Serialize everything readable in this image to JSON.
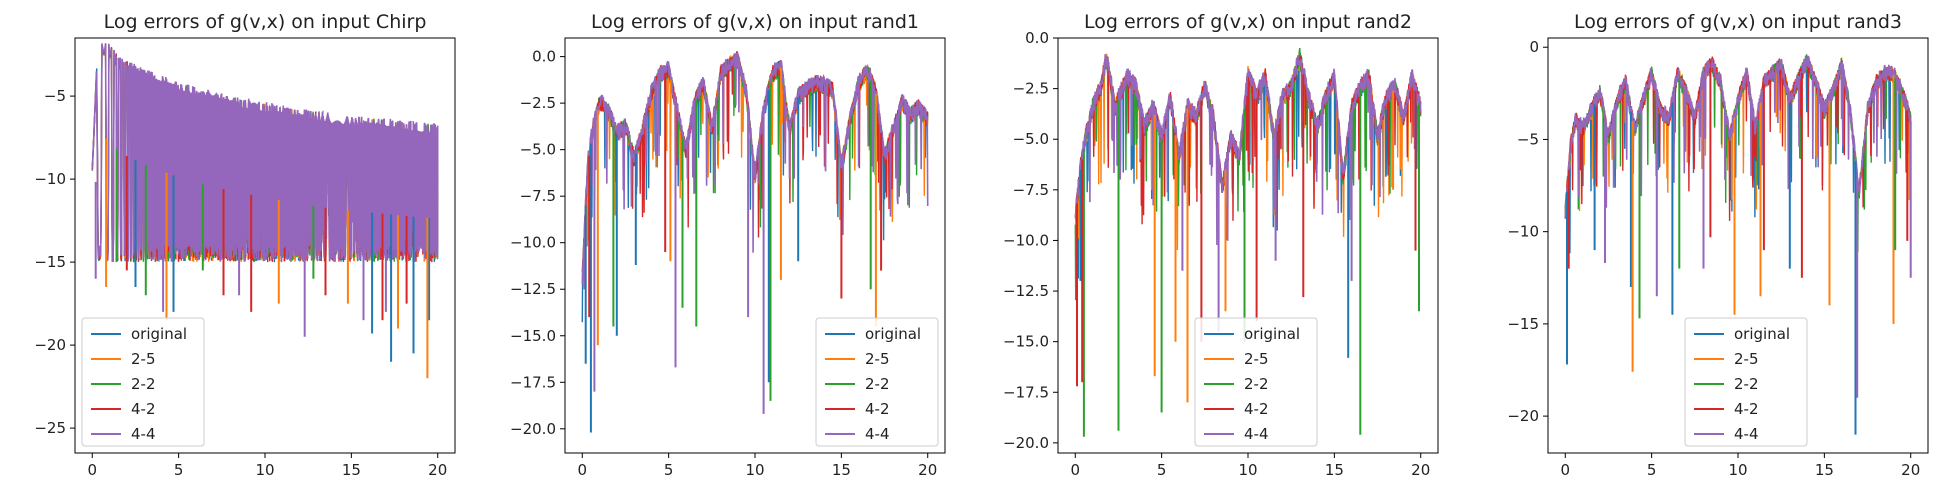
{
  "chart_data": [
    {
      "type": "line",
      "title": "Log errors of g(v,x) on input Chirp",
      "xlabel": "",
      "ylabel": "",
      "xlim": [
        -1,
        21
      ],
      "ylim": [
        -26.5,
        -1.5
      ],
      "xticks": [
        0,
        5,
        10,
        15,
        20
      ],
      "yticks": [
        -25,
        -20,
        -15,
        -10,
        -5
      ],
      "ytick_labels": [
        "−25",
        "−20",
        "−15",
        "−10",
        "−5"
      ],
      "legend": "lower-left",
      "series_labels": [
        "original",
        "2-5",
        "2-2",
        "4-2",
        "4-4"
      ],
      "envelope": {
        "x": [
          0,
          0.3,
          0.6,
          1.0,
          1.5,
          2,
          3,
          4,
          5,
          6,
          8,
          10,
          12,
          14,
          16,
          18,
          20
        ],
        "y": [
          -9.5,
          -3.0,
          -2.5,
          -2.6,
          -3.3,
          -3.6,
          -4.1,
          -4.5,
          -4.9,
          -5.2,
          -5.7,
          -6.1,
          -6.5,
          -6.8,
          -7.0,
          -7.2,
          -7.4
        ]
      },
      "baseline_low": -14.0,
      "spikes": [
        {
          "series": "original",
          "x": 2.5,
          "y": -16.5
        },
        {
          "series": "original",
          "x": 4.7,
          "y": -18.0
        },
        {
          "series": "original",
          "x": 16.2,
          "y": -19.3
        },
        {
          "series": "original",
          "x": 17.3,
          "y": -21.0
        },
        {
          "series": "original",
          "x": 18.6,
          "y": -20.5
        },
        {
          "series": "original",
          "x": 19.5,
          "y": -18.5
        },
        {
          "series": "2-5",
          "x": 0.8,
          "y": -16.5
        },
        {
          "series": "2-5",
          "x": 4.3,
          "y": -18.5
        },
        {
          "series": "2-5",
          "x": 10.8,
          "y": -17.5
        },
        {
          "series": "2-5",
          "x": 17.7,
          "y": -19.0
        },
        {
          "series": "2-5",
          "x": 19.4,
          "y": -22.0
        },
        {
          "series": "2-5",
          "x": 14.8,
          "y": -17.5
        },
        {
          "series": "2-2",
          "x": 1.4,
          "y": -15.0
        },
        {
          "series": "2-2",
          "x": 3.1,
          "y": -17.0
        },
        {
          "series": "2-2",
          "x": 6.4,
          "y": -15.5
        },
        {
          "series": "2-2",
          "x": 12.8,
          "y": -16.0
        },
        {
          "series": "4-2",
          "x": 2.0,
          "y": -15.5
        },
        {
          "series": "4-2",
          "x": 7.6,
          "y": -17.0
        },
        {
          "series": "4-2",
          "x": 9.2,
          "y": -18.0
        },
        {
          "series": "4-2",
          "x": 13.5,
          "y": -17.0
        },
        {
          "series": "4-2",
          "x": 16.8,
          "y": -18.5
        },
        {
          "series": "4-2",
          "x": 18.2,
          "y": -17.5
        },
        {
          "series": "4-4",
          "x": 0.2,
          "y": -16.0
        },
        {
          "series": "4-4",
          "x": 4.1,
          "y": -18.0
        },
        {
          "series": "4-4",
          "x": 8.5,
          "y": -17.0
        },
        {
          "series": "4-4",
          "x": 12.3,
          "y": -19.5
        },
        {
          "series": "4-4",
          "x": 15.7,
          "y": -18.5
        },
        {
          "series": "4-4",
          "x": 17.0,
          "y": -18.0
        }
      ]
    },
    {
      "type": "line",
      "title": "Log errors of g(v,x) on input rand1",
      "xlabel": "",
      "ylabel": "",
      "xlim": [
        -1,
        21
      ],
      "ylim": [
        -21.3,
        1.0
      ],
      "xticks": [
        0,
        5,
        10,
        15,
        20
      ],
      "yticks": [
        -20.0,
        -17.5,
        -15.0,
        -12.5,
        -10.0,
        -7.5,
        -5.0,
        -2.5,
        0.0
      ],
      "ytick_labels": [
        "−20.0",
        "−17.5",
        "−15.0",
        "−12.5",
        "−10.0",
        "−7.5",
        "−5.0",
        "−2.5",
        "0.0"
      ],
      "legend": "lower-right",
      "series_labels": [
        "original",
        "2-5",
        "2-2",
        "4-2",
        "4-4"
      ],
      "curve": {
        "x": [
          0,
          0.3,
          0.6,
          1.0,
          1.5,
          2.0,
          2.5,
          3.0,
          3.5,
          4.0,
          4.5,
          5.0,
          5.5,
          6.0,
          6.5,
          7.0,
          7.5,
          8.0,
          8.5,
          9.0,
          9.5,
          10.0,
          10.5,
          11.0,
          11.5,
          12.0,
          12.5,
          13.0,
          13.5,
          14.0,
          14.5,
          15.0,
          15.5,
          16.0,
          16.5,
          17.0,
          17.5,
          18.0,
          18.5,
          19.0,
          19.5,
          20.0
        ],
        "y": [
          -12.0,
          -6.0,
          -4.0,
          -2.5,
          -3.0,
          -4.2,
          -3.8,
          -5.5,
          -4.0,
          -2.0,
          -1.0,
          -0.8,
          -3.0,
          -5.2,
          -2.5,
          -1.5,
          -4.0,
          -1.0,
          -0.5,
          -0.2,
          -2.0,
          -6.5,
          -3.0,
          -1.0,
          -0.6,
          -4.0,
          -2.2,
          -1.8,
          -1.5,
          -1.6,
          -1.9,
          -6.0,
          -3.5,
          -1.5,
          -0.8,
          -2.0,
          -5.5,
          -4.0,
          -2.5,
          -3.2,
          -2.8,
          -3.5
        ]
      },
      "spikes": [
        {
          "series": "original",
          "x": 0.5,
          "y": -20.2
        },
        {
          "series": "original",
          "x": 0.2,
          "y": -16.5
        },
        {
          "series": "original",
          "x": 10.8,
          "y": -17.5
        },
        {
          "series": "original",
          "x": 12.5,
          "y": -11.0
        },
        {
          "series": "original",
          "x": 3.1,
          "y": -11.2
        },
        {
          "series": "original",
          "x": 2.0,
          "y": -15.0
        },
        {
          "series": "2-5",
          "x": 0.9,
          "y": -15.5
        },
        {
          "series": "2-5",
          "x": 5.1,
          "y": -11.0
        },
        {
          "series": "2-5",
          "x": 11.5,
          "y": -12.0
        },
        {
          "series": "2-5",
          "x": 17.0,
          "y": -14.5
        },
        {
          "series": "2-2",
          "x": 1.8,
          "y": -14.5
        },
        {
          "series": "2-2",
          "x": 5.8,
          "y": -13.5
        },
        {
          "series": "2-2",
          "x": 6.6,
          "y": -14.5
        },
        {
          "series": "2-2",
          "x": 10.9,
          "y": -18.5
        },
        {
          "series": "2-2",
          "x": 16.7,
          "y": -12.5
        },
        {
          "series": "4-2",
          "x": 0.4,
          "y": -14.0
        },
        {
          "series": "4-2",
          "x": 4.8,
          "y": -10.5
        },
        {
          "series": "4-2",
          "x": 17.3,
          "y": -11.5
        },
        {
          "series": "4-2",
          "x": 15.0,
          "y": -13.0
        },
        {
          "series": "4-4",
          "x": 0.7,
          "y": -18.0
        },
        {
          "series": "4-4",
          "x": 5.4,
          "y": -16.7
        },
        {
          "series": "4-4",
          "x": 10.5,
          "y": -19.2
        },
        {
          "series": "4-4",
          "x": 9.6,
          "y": -14.0
        }
      ]
    },
    {
      "type": "line",
      "title": "Log errors of g(v,x) on input rand2",
      "xlabel": "",
      "ylabel": "",
      "xlim": [
        -1,
        21
      ],
      "ylim": [
        -20.5,
        0.0
      ],
      "xticks": [
        0,
        5,
        10,
        15,
        20
      ],
      "yticks": [
        -20.0,
        -17.5,
        -15.0,
        -12.5,
        -10.0,
        -7.5,
        -5.0,
        -2.5,
        0.0
      ],
      "ytick_labels": [
        "−20.0",
        "−17.5",
        "−15.0",
        "−12.5",
        "−10.0",
        "−7.5",
        "−5.0",
        "−2.5",
        "0.0"
      ],
      "legend": "lower-center",
      "series_labels": [
        "original",
        "2-5",
        "2-2",
        "4-2",
        "4-4"
      ],
      "curve": {
        "x": [
          0,
          0.3,
          0.6,
          1.0,
          1.5,
          1.8,
          2.3,
          3.0,
          3.5,
          4.0,
          4.5,
          5.0,
          5.5,
          6.0,
          6.5,
          7.0,
          7.5,
          8.0,
          8.5,
          9.0,
          9.5,
          10.0,
          10.5,
          11.0,
          11.5,
          12.0,
          12.5,
          13.0,
          13.5,
          14.0,
          14.5,
          15.0,
          15.5,
          16.0,
          16.5,
          17.0,
          17.5,
          18.0,
          18.5,
          19.0,
          19.5,
          20.0
        ],
        "y": [
          -9.0,
          -6.5,
          -5.0,
          -3.5,
          -2.5,
          -1.0,
          -3.5,
          -2.0,
          -2.5,
          -4.5,
          -3.5,
          -5.0,
          -3.0,
          -6.0,
          -3.5,
          -4.0,
          -2.5,
          -4.0,
          -7.5,
          -5.0,
          -6.0,
          -1.8,
          -3.0,
          -2.0,
          -5.0,
          -3.0,
          -2.5,
          -1.0,
          -3.0,
          -4.5,
          -3.0,
          -2.0,
          -7.0,
          -3.5,
          -2.5,
          -2.0,
          -5.0,
          -3.0,
          -2.5,
          -4.0,
          -2.0,
          -3.5
        ]
      },
      "spikes": [
        {
          "series": "original",
          "x": 15.8,
          "y": -15.8
        },
        {
          "series": "original",
          "x": 0.3,
          "y": -12.0
        },
        {
          "series": "2-5",
          "x": 4.6,
          "y": -16.7
        },
        {
          "series": "2-5",
          "x": 5.8,
          "y": -15.0
        },
        {
          "series": "2-5",
          "x": 6.5,
          "y": -18.0
        },
        {
          "series": "2-5",
          "x": 18.4,
          "y": -7.5
        },
        {
          "series": "2-5",
          "x": 8.7,
          "y": -13.5
        },
        {
          "series": "2-2",
          "x": 0.5,
          "y": -19.7
        },
        {
          "series": "2-2",
          "x": 2.5,
          "y": -19.4
        },
        {
          "series": "2-2",
          "x": 5.0,
          "y": -18.5
        },
        {
          "series": "2-2",
          "x": 16.5,
          "y": -19.6
        },
        {
          "series": "2-2",
          "x": 19.9,
          "y": -13.5
        },
        {
          "series": "2-2",
          "x": 9.8,
          "y": -15.0
        },
        {
          "series": "4-2",
          "x": 0.1,
          "y": -17.2
        },
        {
          "series": "4-2",
          "x": 0.4,
          "y": -17.0
        },
        {
          "series": "4-2",
          "x": 7.3,
          "y": -15.0
        },
        {
          "series": "4-2",
          "x": 10.5,
          "y": -14.0
        },
        {
          "series": "4-2",
          "x": 13.2,
          "y": -12.8
        },
        {
          "series": "4-2",
          "x": 19.7,
          "y": -10.5
        },
        {
          "series": "4-4",
          "x": 6.2,
          "y": -11.5
        },
        {
          "series": "4-4",
          "x": 8.3,
          "y": -14.5
        },
        {
          "series": "4-4",
          "x": 11.6,
          "y": -11.0
        },
        {
          "series": "4-4",
          "x": 16.0,
          "y": -12.0
        }
      ]
    },
    {
      "type": "line",
      "title": "Log errors of g(v,x) on input rand3",
      "xlabel": "",
      "ylabel": "",
      "xlim": [
        -1,
        21
      ],
      "ylim": [
        -22.0,
        0.5
      ],
      "xticks": [
        0,
        5,
        10,
        15,
        20
      ],
      "yticks": [
        -20,
        -15,
        -10,
        -5,
        0
      ],
      "ytick_labels": [
        "−20",
        "−15",
        "−10",
        "−5",
        "0"
      ],
      "legend": "lower-center",
      "series_labels": [
        "original",
        "2-5",
        "2-2",
        "4-2",
        "4-4"
      ],
      "curve": {
        "x": [
          0,
          0.3,
          0.6,
          1.0,
          1.5,
          2.0,
          2.5,
          3.0,
          3.5,
          4.0,
          4.5,
          5.0,
          5.5,
          6.0,
          6.5,
          7.0,
          7.5,
          8.0,
          8.5,
          9.0,
          9.5,
          10.0,
          10.5,
          11.0,
          11.5,
          12.0,
          12.5,
          13.0,
          13.5,
          14.0,
          14.5,
          15.0,
          15.5,
          16.0,
          16.5,
          17.0,
          17.5,
          18.0,
          18.5,
          19.0,
          19.5,
          20.0
        ],
        "y": [
          -9.0,
          -5.5,
          -4.0,
          -4.5,
          -3.5,
          -2.5,
          -5.0,
          -3.0,
          -2.0,
          -4.5,
          -3.0,
          -1.5,
          -3.5,
          -4.0,
          -1.5,
          -2.5,
          -4.0,
          -1.5,
          -1.0,
          -2.0,
          -5.0,
          -3.0,
          -1.5,
          -4.5,
          -2.0,
          -1.5,
          -1.0,
          -3.0,
          -1.8,
          -0.8,
          -2.0,
          -3.5,
          -2.5,
          -1.0,
          -3.5,
          -8.0,
          -3.5,
          -2.0,
          -1.5,
          -1.5,
          -2.5,
          -4.0
        ]
      },
      "spikes": [
        {
          "series": "original",
          "x": 0.1,
          "y": -17.2
        },
        {
          "series": "original",
          "x": 6.2,
          "y": -14.5
        },
        {
          "series": "original",
          "x": 1.7,
          "y": -11.0
        },
        {
          "series": "original",
          "x": 3.8,
          "y": -13.0
        },
        {
          "series": "original",
          "x": 16.8,
          "y": -21.0
        },
        {
          "series": "original",
          "x": 13.0,
          "y": -12.0
        },
        {
          "series": "2-5",
          "x": 3.9,
          "y": -17.6
        },
        {
          "series": "2-5",
          "x": 9.8,
          "y": -14.5
        },
        {
          "series": "2-5",
          "x": 11.3,
          "y": -13.5
        },
        {
          "series": "2-5",
          "x": 15.3,
          "y": -14.0
        },
        {
          "series": "2-5",
          "x": 19.0,
          "y": -15.0
        },
        {
          "series": "2-2",
          "x": 4.3,
          "y": -14.7
        },
        {
          "series": "2-2",
          "x": 6.6,
          "y": -12.0
        },
        {
          "series": "2-2",
          "x": 19.1,
          "y": -11.0
        },
        {
          "series": "4-2",
          "x": 0.2,
          "y": -12.0
        },
        {
          "series": "4-2",
          "x": 8.4,
          "y": -10.3
        },
        {
          "series": "4-2",
          "x": 11.5,
          "y": -11.0
        },
        {
          "series": "4-2",
          "x": 13.7,
          "y": -12.5
        },
        {
          "series": "4-2",
          "x": 19.8,
          "y": -10.5
        },
        {
          "series": "4-4",
          "x": 2.3,
          "y": -11.7
        },
        {
          "series": "4-4",
          "x": 5.3,
          "y": -13.5
        },
        {
          "series": "4-4",
          "x": 8.0,
          "y": -12.0
        },
        {
          "series": "4-4",
          "x": 16.9,
          "y": -19.0
        },
        {
          "series": "4-4",
          "x": 20.0,
          "y": -12.5
        }
      ]
    }
  ],
  "colors": {
    "original": "#1f77b4",
    "2-5": "#ff7f0e",
    "2-2": "#2ca02c",
    "4-2": "#d62728",
    "4-4": "#9467bd"
  }
}
